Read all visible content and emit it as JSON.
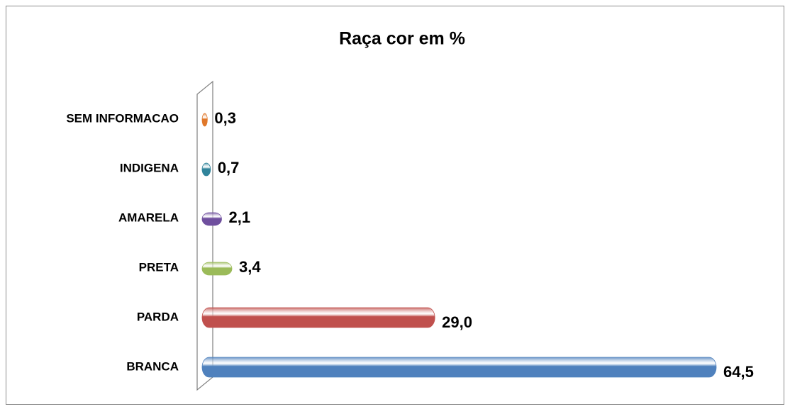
{
  "chart_data": {
    "type": "bar",
    "orientation": "horizontal",
    "title": "Raça cor em %",
    "categories": [
      "SEM INFORMACAO",
      "INDIGENA",
      "AMARELA",
      "PRETA",
      "PARDA",
      "BRANCA"
    ],
    "values": [
      0.3,
      0.7,
      2.1,
      3.4,
      29.0,
      64.5
    ],
    "value_labels": [
      "0,3",
      "0,7",
      "2,1",
      "3,4",
      "29,0",
      "64,5"
    ],
    "colors": [
      "#e0782a",
      "#31849b",
      "#6f4f9e",
      "#9bbb59",
      "#c0504d",
      "#4f81bd"
    ]
  }
}
